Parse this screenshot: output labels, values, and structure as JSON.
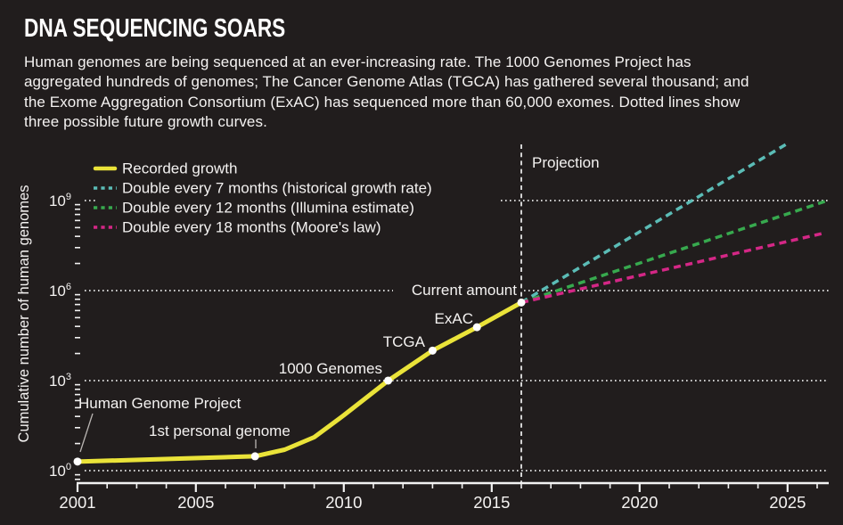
{
  "header": {
    "title": "DNA SEQUENCING SOARS",
    "description_lines": [
      "Human genomes are being sequenced at an ever-increasing rate. The 1000 Genomes Project has",
      "aggregated hundreds of genomes; The Cancer Genome Atlas (TGCA) has gathered several thousand; and",
      "the Exome Aggregation Consortium (ExAC) has sequenced more than 60,000 exomes. Dotted lines show",
      "three possible future growth curves."
    ]
  },
  "colors": {
    "background": "#211d1d",
    "text": "#f4f2f1",
    "recorded": "#eae339",
    "projection_7mo": "#5bbcb6",
    "projection_12mo": "#37a94e",
    "projection_18mo": "#d42786",
    "gridline": "#e9e9e9",
    "axis": "#f2f2f2",
    "leader": "#b9b5b2",
    "dot": "#ffffff"
  },
  "chart_data": {
    "type": "line",
    "title": "DNA SEQUENCING SOARS",
    "xlabel": "",
    "ylabel": "Cumulative number of human genomes",
    "y_scale": "log",
    "y_tick_exponents": [
      9,
      6,
      3,
      0
    ],
    "x_tick_years": [
      2001,
      2005,
      2010,
      2015,
      2020,
      2025
    ],
    "x_range": [
      2001,
      2026.4
    ],
    "x_minor_tick_step_years": 1,
    "grid": "dotted horizontal at decade labels",
    "legend_position": "top-left",
    "projection_divider_year": 2016,
    "projection_label": "Projection",
    "series": [
      {
        "name": "Recorded growth",
        "style": "solid",
        "color_key": "recorded",
        "points": [
          {
            "year": 2001,
            "genomes": 2,
            "label": "Human Genome Project"
          },
          {
            "year": 2007,
            "genomes": 3,
            "label": "1st personal genome"
          },
          {
            "year": 2008,
            "genomes": 5
          },
          {
            "year": 2009,
            "genomes": 13
          },
          {
            "year": 2010,
            "genomes": 70
          },
          {
            "year": 2011.5,
            "genomes": 1000,
            "label": "1000 Genomes"
          },
          {
            "year": 2013,
            "genomes": 10000,
            "label": "TCGA"
          },
          {
            "year": 2014.5,
            "genomes": 60000,
            "label": "ExAC"
          },
          {
            "year": 2016,
            "genomes": 400000,
            "label": "Current amount"
          }
        ]
      },
      {
        "name": "Double every 7 months (historical growth rate)",
        "style": "dashed",
        "color_key": "projection_7mo",
        "points": [
          {
            "year": 2016,
            "genomes": 400000
          },
          {
            "year": 2025,
            "genomes": 80000000000
          }
        ]
      },
      {
        "name": "Double every 12 months (Illumina estimate)",
        "style": "dashed",
        "color_key": "projection_12mo",
        "points": [
          {
            "year": 2016,
            "genomes": 400000
          },
          {
            "year": 2026.35,
            "genomes": 1000000000
          }
        ]
      },
      {
        "name": "Double every 18 months (Moore's law)",
        "style": "dashed",
        "color_key": "projection_18mo",
        "points": [
          {
            "year": 2016,
            "genomes": 400000
          },
          {
            "year": 2026.3,
            "genomes": 85000000
          }
        ]
      }
    ]
  }
}
